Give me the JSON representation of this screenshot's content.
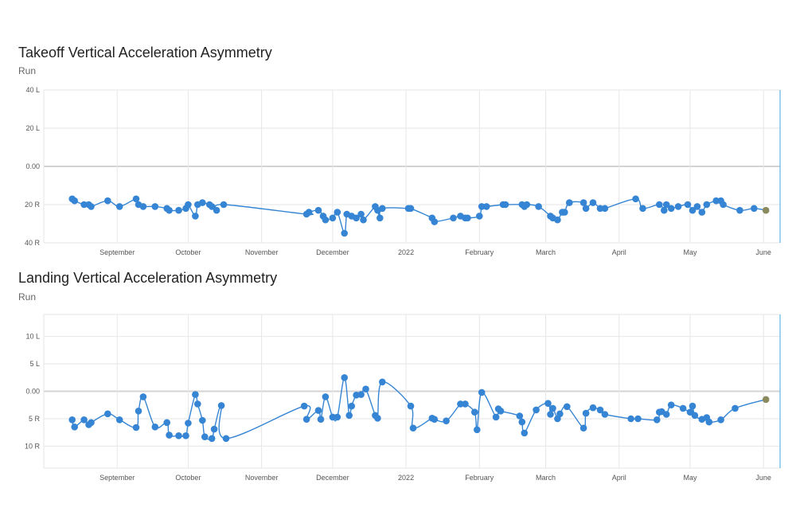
{
  "colors": {
    "point": "#3585d4",
    "line": "#3585d4",
    "last_point": "#8b8a5e",
    "grid": "#e6e6e6",
    "zero": "#d3d3d3",
    "right_edge": "#7fc3e8"
  },
  "x_month_labels": [
    "September",
    "October",
    "November",
    "December",
    "2022",
    "February",
    "March",
    "April",
    "May",
    "June"
  ],
  "chart_data": [
    {
      "type": "line",
      "title": "Takeoff Vertical Acceleration Asymmetry",
      "subtitle": "Run",
      "ytick_labels": [
        "40 L",
        "20 L",
        "0.00",
        "20 R",
        "40 R"
      ],
      "ylim": [
        -40,
        40
      ],
      "x_axis": "date",
      "series": [
        {
          "points": [
            [
              "2021-08-13",
              -17
            ],
            [
              "2021-08-14",
              -18
            ],
            [
              "2021-08-18",
              -20
            ],
            [
              "2021-08-20",
              -20
            ],
            [
              "2021-08-21",
              -21
            ],
            [
              "2021-08-28",
              -18
            ],
            [
              "2021-09-02",
              -21
            ],
            [
              "2021-09-09",
              -17
            ],
            [
              "2021-09-10",
              -20
            ],
            [
              "2021-09-12",
              -21
            ],
            [
              "2021-09-17",
              -21
            ],
            [
              "2021-09-22",
              -22
            ],
            [
              "2021-09-23",
              -23
            ],
            [
              "2021-09-27",
              -23
            ],
            [
              "2021-09-30",
              -22
            ],
            [
              "2021-10-01",
              -20
            ],
            [
              "2021-10-04",
              -26
            ],
            [
              "2021-10-05",
              -20
            ],
            [
              "2021-10-07",
              -19
            ],
            [
              "2021-10-10",
              -20
            ],
            [
              "2021-10-11",
              -21
            ],
            [
              "2021-10-13",
              -23
            ],
            [
              "2021-10-16",
              -20
            ],
            [
              "2021-11-20",
              -25
            ],
            [
              "2021-11-21",
              -24
            ],
            [
              "2021-11-25",
              -23
            ],
            [
              "2021-11-27",
              -26
            ],
            [
              "2021-11-28",
              -28
            ],
            [
              "2021-12-01",
              -27
            ],
            [
              "2021-12-03",
              -24
            ],
            [
              "2021-12-06",
              -35
            ],
            [
              "2021-12-07",
              -25
            ],
            [
              "2021-12-09",
              -26
            ],
            [
              "2021-12-11",
              -27
            ],
            [
              "2021-12-13",
              -25
            ],
            [
              "2021-12-14",
              -28
            ],
            [
              "2021-12-19",
              -21
            ],
            [
              "2021-12-20",
              -23
            ],
            [
              "2021-12-21",
              -27
            ],
            [
              "2021-12-22",
              -22
            ],
            [
              "2022-01-02",
              -22
            ],
            [
              "2022-01-03",
              -22
            ],
            [
              "2022-01-12",
              -27
            ],
            [
              "2022-01-13",
              -29
            ],
            [
              "2022-01-21",
              -27
            ],
            [
              "2022-01-24",
              -26
            ],
            [
              "2022-01-26",
              -27
            ],
            [
              "2022-01-27",
              -27
            ],
            [
              "2022-02-01",
              -26
            ],
            [
              "2022-02-02",
              -21
            ],
            [
              "2022-02-04",
              -21
            ],
            [
              "2022-02-11",
              -20
            ],
            [
              "2022-02-12",
              -20
            ],
            [
              "2022-02-19",
              -20
            ],
            [
              "2022-02-20",
              -21
            ],
            [
              "2022-02-21",
              -20
            ],
            [
              "2022-02-26",
              -21
            ],
            [
              "2022-03-03",
              -26
            ],
            [
              "2022-03-04",
              -27
            ],
            [
              "2022-03-06",
              -28
            ],
            [
              "2022-03-08",
              -24
            ],
            [
              "2022-03-09",
              -24
            ],
            [
              "2022-03-11",
              -19
            ],
            [
              "2022-03-17",
              -19
            ],
            [
              "2022-03-18",
              -22
            ],
            [
              "2022-03-21",
              -19
            ],
            [
              "2022-03-24",
              -22
            ],
            [
              "2022-03-26",
              -22
            ],
            [
              "2022-04-08",
              -17
            ],
            [
              "2022-04-11",
              -22
            ],
            [
              "2022-04-18",
              -20
            ],
            [
              "2022-04-20",
              -23
            ],
            [
              "2022-04-21",
              -20
            ],
            [
              "2022-04-23",
              -22
            ],
            [
              "2022-04-26",
              -21
            ],
            [
              "2022-04-30",
              -20
            ],
            [
              "2022-05-02",
              -23
            ],
            [
              "2022-05-04",
              -21
            ],
            [
              "2022-05-06",
              -24
            ],
            [
              "2022-05-08",
              -20
            ],
            [
              "2022-05-12",
              -18
            ],
            [
              "2022-05-14",
              -18
            ],
            [
              "2022-05-15",
              -20
            ],
            [
              "2022-05-22",
              -23
            ],
            [
              "2022-05-28",
              -22
            ],
            [
              "2022-06-02",
              -23
            ]
          ]
        }
      ]
    },
    {
      "type": "line",
      "title": "Landing Vertical Acceleration Asymmetry",
      "subtitle": "Run",
      "ytick_labels": [
        "10 L",
        "5 L",
        "0.00",
        "5 R",
        "10 R"
      ],
      "ylim": [
        -14,
        14
      ],
      "x_axis": "date",
      "series": [
        {
          "points": [
            [
              "2021-08-13",
              -5.2
            ],
            [
              "2021-08-14",
              -6.5
            ],
            [
              "2021-08-18",
              -5.2
            ],
            [
              "2021-08-20",
              -6.1
            ],
            [
              "2021-08-21",
              -5.7
            ],
            [
              "2021-08-28",
              -4.1
            ],
            [
              "2021-09-02",
              -5.2
            ],
            [
              "2021-09-09",
              -6.6
            ],
            [
              "2021-09-10",
              -3.6
            ],
            [
              "2021-09-12",
              -1.0
            ],
            [
              "2021-09-17",
              -6.5
            ],
            [
              "2021-09-22",
              -5.7
            ],
            [
              "2021-09-23",
              -8.0
            ],
            [
              "2021-09-27",
              -8.1
            ],
            [
              "2021-09-30",
              -8.1
            ],
            [
              "2021-10-01",
              -5.8
            ],
            [
              "2021-10-04",
              -0.6
            ],
            [
              "2021-10-05",
              -2.3
            ],
            [
              "2021-10-07",
              -5.3
            ],
            [
              "2021-10-08",
              -8.3
            ],
            [
              "2021-10-11",
              -8.6
            ],
            [
              "2021-10-12",
              -6.9
            ],
            [
              "2021-10-15",
              -2.6
            ],
            [
              "2021-10-17",
              -8.6
            ],
            [
              "2021-11-19",
              -2.7
            ],
            [
              "2021-11-20",
              -5.1
            ],
            [
              "2021-11-25",
              -3.5
            ],
            [
              "2021-11-26",
              -5.1
            ],
            [
              "2021-11-28",
              -1.0
            ],
            [
              "2021-12-01",
              -4.7
            ],
            [
              "2021-12-03",
              -4.7
            ],
            [
              "2021-12-06",
              2.5
            ],
            [
              "2021-12-08",
              -4.4
            ],
            [
              "2021-12-09",
              -2.7
            ],
            [
              "2021-12-11",
              -0.7
            ],
            [
              "2021-12-13",
              -0.6
            ],
            [
              "2021-12-15",
              0.4
            ],
            [
              "2021-12-19",
              -4.4
            ],
            [
              "2021-12-20",
              -4.9
            ],
            [
              "2021-12-22",
              1.7
            ],
            [
              "2022-01-03",
              -2.7
            ],
            [
              "2022-01-04",
              -6.7
            ],
            [
              "2022-01-12",
              -4.9
            ],
            [
              "2022-01-13",
              -5.1
            ],
            [
              "2022-01-18",
              -5.4
            ],
            [
              "2022-01-24",
              -2.3
            ],
            [
              "2022-01-26",
              -2.3
            ],
            [
              "2022-01-30",
              -3.8
            ],
            [
              "2022-01-31",
              -7.0
            ],
            [
              "2022-02-02",
              -0.2
            ],
            [
              "2022-02-08",
              -4.7
            ],
            [
              "2022-02-09",
              -3.2
            ],
            [
              "2022-02-10",
              -3.6
            ],
            [
              "2022-02-18",
              -4.5
            ],
            [
              "2022-02-19",
              -5.6
            ],
            [
              "2022-02-20",
              -7.6
            ],
            [
              "2022-02-25",
              -3.4
            ],
            [
              "2022-03-02",
              -2.2
            ],
            [
              "2022-03-03",
              -4.2
            ],
            [
              "2022-03-04",
              -3.1
            ],
            [
              "2022-03-06",
              -5.0
            ],
            [
              "2022-03-07",
              -4.1
            ],
            [
              "2022-03-10",
              -2.8
            ],
            [
              "2022-03-17",
              -6.7
            ],
            [
              "2022-03-18",
              -4.0
            ],
            [
              "2022-03-21",
              -3.0
            ],
            [
              "2022-03-24",
              -3.4
            ],
            [
              "2022-03-26",
              -4.2
            ],
            [
              "2022-04-06",
              -5.0
            ],
            [
              "2022-04-09",
              -5.0
            ],
            [
              "2022-04-17",
              -5.2
            ],
            [
              "2022-04-18",
              -3.8
            ],
            [
              "2022-04-19",
              -3.7
            ],
            [
              "2022-04-21",
              -4.2
            ],
            [
              "2022-04-23",
              -2.5
            ],
            [
              "2022-04-28",
              -3.1
            ],
            [
              "2022-05-01",
              -3.8
            ],
            [
              "2022-05-02",
              -2.7
            ],
            [
              "2022-05-03",
              -4.4
            ],
            [
              "2022-05-06",
              -5.1
            ],
            [
              "2022-05-08",
              -4.8
            ],
            [
              "2022-05-09",
              -5.6
            ],
            [
              "2022-05-14",
              -5.2
            ],
            [
              "2022-05-20",
              -3.1
            ],
            [
              "2022-06-02",
              -1.5
            ]
          ]
        }
      ]
    }
  ]
}
